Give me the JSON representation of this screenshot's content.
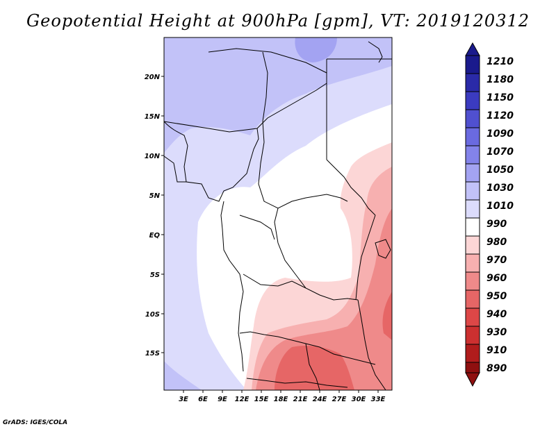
{
  "title": "Geopotential Height at 900hPa [gpm], VT: 2019120312",
  "credit": "GrADS: IGES/COLA",
  "map": {
    "lat_labels": [
      "20N",
      "15N",
      "10N",
      "5N",
      "EQ",
      "5S",
      "10S",
      "15S"
    ],
    "lon_labels": [
      "3E",
      "6E",
      "9E",
      "12E",
      "15E",
      "18E",
      "21E",
      "24E",
      "27E",
      "30E",
      "33E"
    ]
  },
  "colorbar": {
    "levels": [
      "1210",
      "1180",
      "1150",
      "1120",
      "1090",
      "1070",
      "1050",
      "1030",
      "1010",
      "990",
      "980",
      "970",
      "960",
      "950",
      "940",
      "930",
      "910",
      "890"
    ],
    "colors": [
      "#1a1a8c",
      "#2a2aa8",
      "#3b3bc0",
      "#5050d0",
      "#6a6ae0",
      "#8383ea",
      "#a3a3f2",
      "#c2c2f8",
      "#dcdcfc",
      "#ffffff",
      "#fcd6d6",
      "#f7b0b0",
      "#ef8a8a",
      "#e66666",
      "#dd4747",
      "#cc3030",
      "#b01c1c",
      "#8f1010"
    ]
  }
}
